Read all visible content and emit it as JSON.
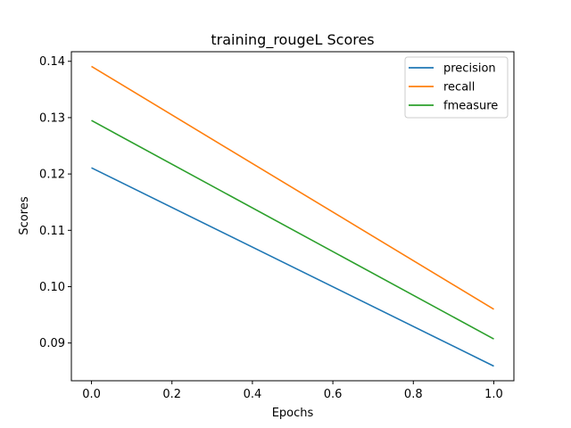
{
  "chart_data": {
    "type": "line",
    "title": "training_rougeL Scores",
    "xlabel": "Epochs",
    "ylabel": "Scores",
    "x": [
      0.0,
      1.0
    ],
    "xlim": [
      -0.05,
      1.05
    ],
    "ylim": [
      0.0833,
      0.1417
    ],
    "xticks": [
      "0.0",
      "0.2",
      "0.4",
      "0.6",
      "0.8",
      "1.0"
    ],
    "yticks": [
      "0.09",
      "0.10",
      "0.11",
      "0.12",
      "0.13",
      "0.14"
    ],
    "series": [
      {
        "name": "precision",
        "color": "#1f77b4",
        "values": [
          0.1211,
          0.0859
        ]
      },
      {
        "name": "recall",
        "color": "#ff7f0e",
        "values": [
          0.1391,
          0.096
        ]
      },
      {
        "name": "fmeasure",
        "color": "#2ca02c",
        "values": [
          0.1295,
          0.0907
        ]
      }
    ],
    "legend": "upper-right",
    "grid": false
  }
}
